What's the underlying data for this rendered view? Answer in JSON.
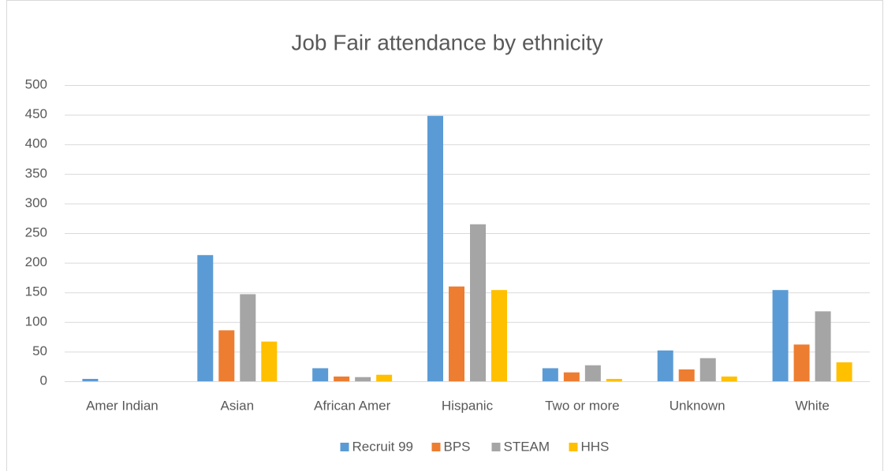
{
  "chart_data": {
    "type": "bar",
    "title": "Job Fair attendance by ethnicity",
    "categories": [
      "Amer Indian",
      "Asian",
      "African Amer",
      "Hispanic",
      "Two or more",
      "Unknown",
      "White"
    ],
    "series": [
      {
        "name": "Recruit 99",
        "color": "#5b9bd5",
        "values": [
          4,
          213,
          22,
          448,
          22,
          52,
          154
        ]
      },
      {
        "name": "BPS",
        "color": "#ed7d31",
        "values": [
          0,
          86,
          8,
          160,
          15,
          20,
          62
        ]
      },
      {
        "name": "STEAM",
        "color": "#a5a5a5",
        "values": [
          0,
          147,
          7,
          265,
          27,
          39,
          118
        ]
      },
      {
        "name": "HHS",
        "color": "#ffc000",
        "values": [
          0,
          67,
          11,
          154,
          4,
          8,
          32
        ]
      }
    ],
    "ylim": [
      0,
      500
    ],
    "yticks": [
      0,
      50,
      100,
      150,
      200,
      250,
      300,
      350,
      400,
      450,
      500
    ],
    "grid": true,
    "legend": "bottom"
  }
}
